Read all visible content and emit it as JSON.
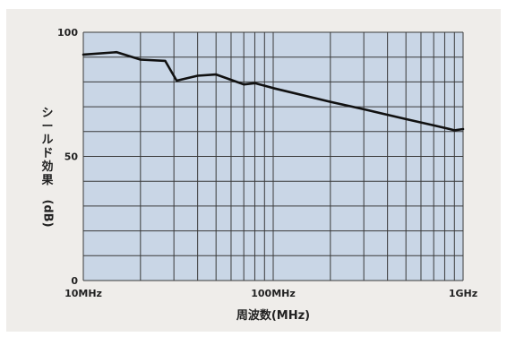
{
  "chart_data": {
    "type": "line",
    "title": "",
    "xlabel": "周波数(MHz)",
    "ylabel_chars": [
      "シ",
      "ー",
      "ル",
      "ド",
      "効",
      "果",
      "(dB)"
    ],
    "ylabel": "シールド効果(dB)",
    "x_scale": "log",
    "xlim": [
      10,
      1000
    ],
    "ylim": [
      0,
      100
    ],
    "x_tick_labels": [
      {
        "value": 10,
        "label": "10MHz"
      },
      {
        "value": 100,
        "label": "100MHz"
      },
      {
        "value": 1000,
        "label": "1GHz"
      }
    ],
    "y_tick_labels": [
      {
        "value": 0,
        "label": "0"
      },
      {
        "value": 50,
        "label": "50"
      },
      {
        "value": 100,
        "label": "100"
      }
    ],
    "x_gridlines": [
      10,
      20,
      30,
      40,
      50,
      60,
      70,
      80,
      90,
      100,
      200,
      300,
      400,
      500,
      600,
      700,
      800,
      900,
      1000
    ],
    "y_gridlines": [
      0,
      10,
      20,
      30,
      40,
      50,
      60,
      70,
      80,
      90,
      100
    ],
    "grid": true,
    "legend": "none",
    "colors": {
      "plot_background": "#c9d6e6",
      "gridline": "#3a3a3a",
      "series_line": "#111111",
      "panel_background": "#efedea"
    },
    "series": [
      {
        "x": [
          10,
          15,
          20,
          27,
          31,
          40,
          50,
          70,
          80,
          90,
          100,
          200,
          300,
          500,
          700,
          850,
          900,
          1000
        ],
        "y": [
          91,
          92,
          89,
          88.5,
          80.5,
          82.5,
          83,
          79,
          79.5,
          78.5,
          77.5,
          72,
          69,
          65,
          62.5,
          61,
          60.5,
          61
        ]
      }
    ]
  }
}
